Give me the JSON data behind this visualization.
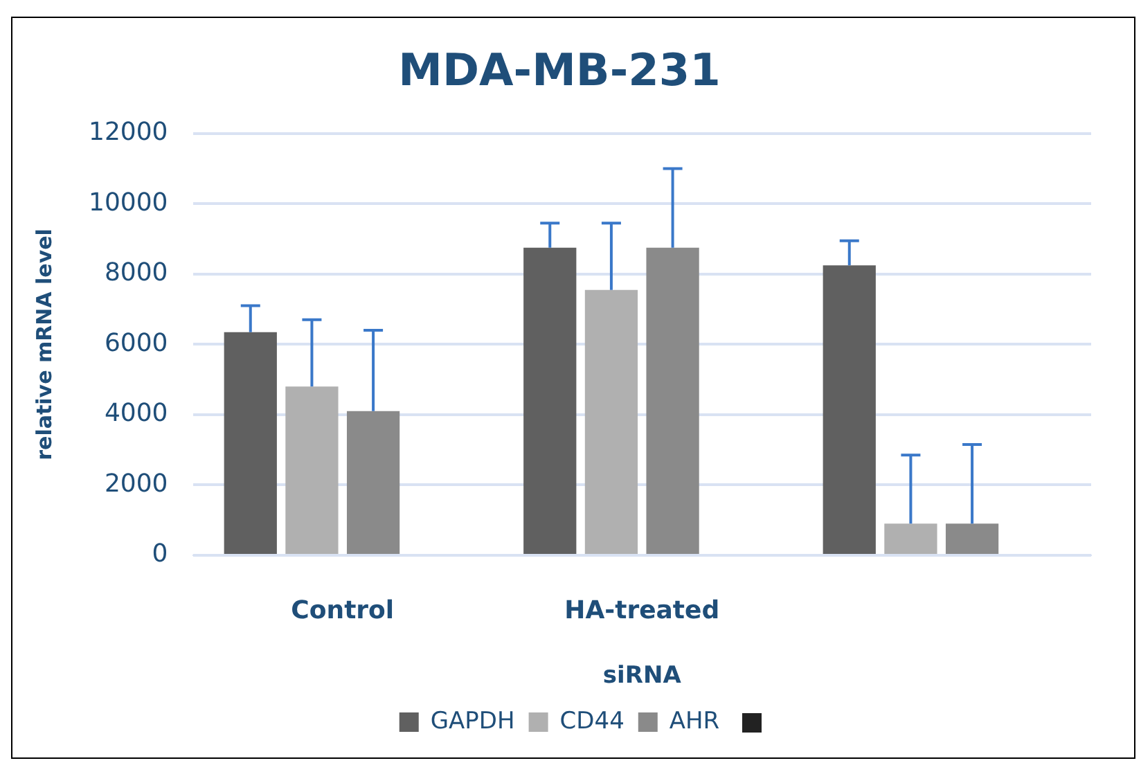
{
  "chart_data": {
    "type": "bar",
    "title": "MDA-MB-231",
    "xlabel": "siRNA",
    "ylabel": "relative mRNA level",
    "categories": [
      "Control",
      "HA-treated",
      null
    ],
    "series": [
      {
        "name": "GAPDH",
        "color": "#606060",
        "values": [
          6350,
          8750,
          8250
        ],
        "errors": [
          [
            6350,
            7100
          ],
          [
            8750,
            9450
          ],
          [
            8250,
            8950
          ]
        ]
      },
      {
        "name": "CD44",
        "color": "#b0b0b0",
        "values": [
          4800,
          7550,
          900
        ],
        "errors": [
          [
            4800,
            6700
          ],
          [
            7550,
            9450
          ],
          [
            900,
            2850
          ]
        ]
      },
      {
        "name": "AHR",
        "color": "#8a8a8a",
        "values": [
          4100,
          8750,
          900
        ],
        "errors": [
          [
            4100,
            6400
          ],
          [
            8750,
            11000
          ],
          [
            900,
            3150
          ]
        ]
      },
      {
        "color": "#222222",
        "values": [
          null,
          null,
          null
        ]
      }
    ],
    "ylim": [
      0,
      12000
    ],
    "yticks": [
      0,
      2000,
      4000,
      6000,
      8000,
      10000,
      12000
    ],
    "grid": "y",
    "legend": "bottom"
  }
}
